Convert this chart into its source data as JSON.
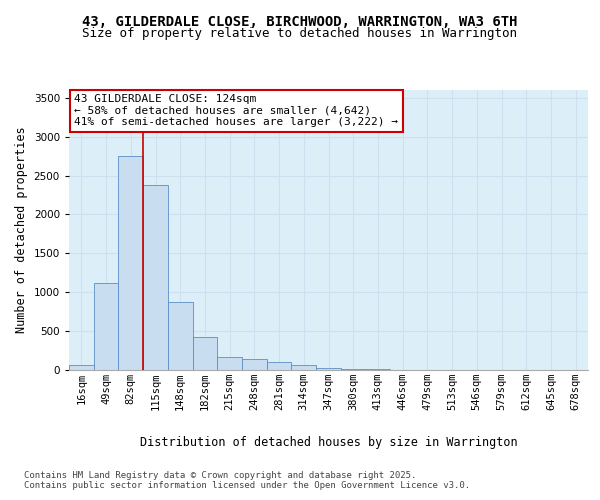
{
  "title_line1": "43, GILDERDALE CLOSE, BIRCHWOOD, WARRINGTON, WA3 6TH",
  "title_line2": "Size of property relative to detached houses in Warrington",
  "xlabel": "Distribution of detached houses by size in Warrington",
  "ylabel": "Number of detached properties",
  "categories": [
    "16sqm",
    "49sqm",
    "82sqm",
    "115sqm",
    "148sqm",
    "182sqm",
    "215sqm",
    "248sqm",
    "281sqm",
    "314sqm",
    "347sqm",
    "380sqm",
    "413sqm",
    "446sqm",
    "479sqm",
    "513sqm",
    "546sqm",
    "579sqm",
    "612sqm",
    "645sqm",
    "678sqm"
  ],
  "values": [
    60,
    1120,
    2750,
    2380,
    870,
    430,
    165,
    140,
    100,
    65,
    30,
    18,
    10,
    5,
    3,
    2,
    1,
    1,
    1,
    0,
    0
  ],
  "bar_color": "#c9ddf0",
  "bar_edge_color": "#5b8ec4",
  "grid_color": "#cce0f0",
  "background_color": "#dceef8",
  "vline_color": "#cc0000",
  "vline_x": 2.5,
  "annotation_text": "43 GILDERDALE CLOSE: 124sqm\n← 58% of detached houses are smaller (4,642)\n41% of semi-detached houses are larger (3,222) →",
  "annotation_box_color": "#ffffff",
  "annotation_border_color": "#cc0000",
  "ylim": [
    0,
    3600
  ],
  "yticks": [
    0,
    500,
    1000,
    1500,
    2000,
    2500,
    3000,
    3500
  ],
  "footer_line1": "Contains HM Land Registry data © Crown copyright and database right 2025.",
  "footer_line2": "Contains public sector information licensed under the Open Government Licence v3.0.",
  "title_fontsize": 10,
  "subtitle_fontsize": 9,
  "axis_label_fontsize": 8.5,
  "tick_fontsize": 7.5,
  "annotation_fontsize": 8,
  "footer_fontsize": 6.5
}
